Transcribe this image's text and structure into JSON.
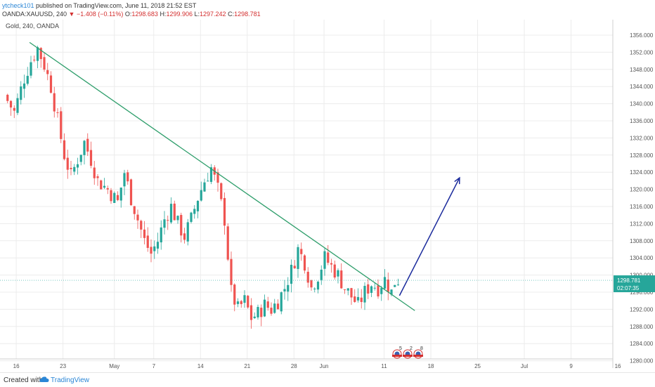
{
  "header": {
    "author": "ytcheck101",
    "published_text": "published on TradingView.com, June 11, 2018 21:52 EST",
    "symbol_line": "OANDA:XAUUSD, 240",
    "change": "▼ −1.408 (−0.11%)",
    "o_label": "O:",
    "o_value": "1298.683",
    "h_label": "H:",
    "h_value": "1299.906",
    "l_label": "L:",
    "l_value": "1297.242",
    "c_label": "C:",
    "c_value": "1298.781"
  },
  "footer": {
    "created_with": "Created with",
    "brand": "TradingView"
  },
  "colors": {
    "up": "#26a69a",
    "down": "#ef5350",
    "trendline": "#2e9e6b",
    "arrow": "#1a2a9c",
    "price_tag": "#26a69a"
  },
  "chart_data": {
    "type": "candlestick",
    "symbol_label": "Gold, 240, OANDA",
    "y_ticks": [
      1280,
      1284,
      1288,
      1292,
      1296,
      1300,
      1304,
      1308,
      1312,
      1316,
      1320,
      1324,
      1328,
      1332,
      1336,
      1340,
      1344,
      1348,
      1352,
      1356
    ],
    "y_tick_labels": [
      "1280.000",
      "1284.000",
      "1288.000",
      "1292.000",
      "1296.000",
      "1300.000",
      "1304.000",
      "1308.000",
      "1312.000",
      "1316.000",
      "1320.000",
      "1324.000",
      "1328.000",
      "1332.000",
      "1336.000",
      "1340.000",
      "1344.000",
      "1348.000",
      "1352.000",
      "1356.000"
    ],
    "ylim": [
      1278.5,
      1358.6
    ],
    "x_tick_labels": [
      "16",
      "23",
      "May",
      "7",
      "14",
      "21",
      "28",
      "Jun",
      "11",
      "18",
      "25",
      "Jul",
      "9",
      "16"
    ],
    "last_price": "1298.781",
    "countdown": "02:07:35",
    "last_value": 1298.78,
    "close_path": [
      [
        0,
        1342
      ],
      [
        1.5,
        1338
      ],
      [
        3,
        1346
      ],
      [
        4,
        1350
      ],
      [
        5,
        1353
      ],
      [
        6,
        1349
      ],
      [
        7,
        1344
      ],
      [
        8,
        1336
      ],
      [
        9,
        1328
      ],
      [
        10,
        1323
      ],
      [
        11,
        1327
      ],
      [
        12,
        1331
      ],
      [
        13,
        1327
      ],
      [
        14,
        1322
      ],
      [
        15.5,
        1320
      ],
      [
        17,
        1317
      ],
      [
        18,
        1324
      ],
      [
        19,
        1318
      ],
      [
        20,
        1313
      ],
      [
        21,
        1308
      ],
      [
        22,
        1305
      ],
      [
        23,
        1308
      ],
      [
        24,
        1313
      ],
      [
        25,
        1316
      ],
      [
        26,
        1312
      ],
      [
        27,
        1309
      ],
      [
        28,
        1313
      ],
      [
        29,
        1318
      ],
      [
        30,
        1322
      ],
      [
        31,
        1325
      ],
      [
        32,
        1320
      ],
      [
        33,
        1313
      ],
      [
        34,
        1296
      ],
      [
        35,
        1292
      ],
      [
        36,
        1294
      ],
      [
        37,
        1290
      ],
      [
        38,
        1291
      ],
      [
        39,
        1293
      ],
      [
        40,
        1292
      ],
      [
        41,
        1294
      ],
      [
        42,
        1297
      ],
      [
        43,
        1301
      ],
      [
        44,
        1306
      ],
      [
        45,
        1303
      ],
      [
        46,
        1297
      ],
      [
        47,
        1300
      ],
      [
        48,
        1304
      ],
      [
        49,
        1302
      ],
      [
        50,
        1300
      ],
      [
        51,
        1297
      ],
      [
        52,
        1295
      ],
      [
        53,
        1293
      ],
      [
        54,
        1296
      ],
      [
        55,
        1298
      ],
      [
        56,
        1297
      ],
      [
        57,
        1299
      ],
      [
        58,
        1296
      ],
      [
        58.6,
        1299
      ],
      [
        59.3,
        1298.78
      ]
    ],
    "trendline": {
      "start": [
        3.8,
        1354.3
      ],
      "end": [
        61.5,
        1291.7
      ]
    },
    "projection_arrow": {
      "start": [
        59.2,
        1295.2
      ],
      "end": [
        68.2,
        1322.7
      ]
    },
    "event_markers": [
      "5",
      "2",
      "8"
    ]
  }
}
